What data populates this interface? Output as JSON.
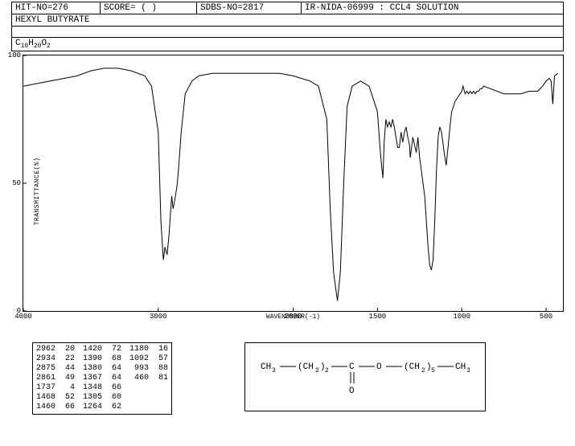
{
  "header": {
    "hit_no": "HIT-NO=276",
    "score": "SCORE=   (   )",
    "sdbs_no": "SDBS-NO=2817",
    "ir_info": "IR-NIDA-06999 : CCL4 SOLUTION"
  },
  "compound_name": "HEXYL BUTYRATE",
  "formula_parts": [
    "C",
    "10",
    "H",
    "20",
    "O",
    "2"
  ],
  "chart": {
    "type": "line",
    "y_label": "TRANSMITTANCE(%)",
    "x_label": "WAVENUMBER(-1)",
    "xlim": [
      4000,
      400
    ],
    "ylim": [
      0,
      100
    ],
    "x_ticks": [
      4000,
      3000,
      2000,
      1500,
      1000,
      500
    ],
    "y_ticks": [
      0,
      50,
      100
    ],
    "line_color": "#000000",
    "background_color": "#ffffff",
    "data": [
      [
        4000,
        88
      ],
      [
        3900,
        89
      ],
      [
        3800,
        90
      ],
      [
        3700,
        91
      ],
      [
        3600,
        92
      ],
      [
        3500,
        94
      ],
      [
        3400,
        95
      ],
      [
        3300,
        95
      ],
      [
        3200,
        94
      ],
      [
        3100,
        92
      ],
      [
        3050,
        88
      ],
      [
        3000,
        70
      ],
      [
        2980,
        35
      ],
      [
        2962,
        20
      ],
      [
        2950,
        25
      ],
      [
        2934,
        22
      ],
      [
        2920,
        30
      ],
      [
        2900,
        45
      ],
      [
        2890,
        40
      ],
      [
        2875,
        44
      ],
      [
        2861,
        49
      ],
      [
        2850,
        55
      ],
      [
        2830,
        70
      ],
      [
        2800,
        85
      ],
      [
        2750,
        90
      ],
      [
        2700,
        92
      ],
      [
        2600,
        93
      ],
      [
        2500,
        93
      ],
      [
        2400,
        93
      ],
      [
        2300,
        93
      ],
      [
        2200,
        93
      ],
      [
        2100,
        93
      ],
      [
        2000,
        92
      ],
      [
        1950,
        91
      ],
      [
        1900,
        90
      ],
      [
        1850,
        88
      ],
      [
        1800,
        75
      ],
      [
        1780,
        40
      ],
      [
        1760,
        15
      ],
      [
        1737,
        4
      ],
      [
        1720,
        15
      ],
      [
        1700,
        50
      ],
      [
        1680,
        80
      ],
      [
        1650,
        88
      ],
      [
        1600,
        90
      ],
      [
        1550,
        88
      ],
      [
        1520,
        82
      ],
      [
        1500,
        78
      ],
      [
        1480,
        60
      ],
      [
        1468,
        52
      ],
      [
        1460,
        66
      ],
      [
        1450,
        75
      ],
      [
        1440,
        72
      ],
      [
        1430,
        74
      ],
      [
        1420,
        72
      ],
      [
        1410,
        75
      ],
      [
        1400,
        72
      ],
      [
        1390,
        68
      ],
      [
        1380,
        64
      ],
      [
        1370,
        64
      ],
      [
        1360,
        70
      ],
      [
        1350,
        66
      ],
      [
        1340,
        70
      ],
      [
        1330,
        72
      ],
      [
        1320,
        68
      ],
      [
        1310,
        65
      ],
      [
        1305,
        60
      ],
      [
        1290,
        68
      ],
      [
        1280,
        65
      ],
      [
        1270,
        62
      ],
      [
        1260,
        68
      ],
      [
        1250,
        60
      ],
      [
        1240,
        55
      ],
      [
        1230,
        50
      ],
      [
        1220,
        45
      ],
      [
        1210,
        35
      ],
      [
        1200,
        25
      ],
      [
        1190,
        18
      ],
      [
        1180,
        16
      ],
      [
        1170,
        20
      ],
      [
        1160,
        35
      ],
      [
        1150,
        55
      ],
      [
        1140,
        68
      ],
      [
        1130,
        72
      ],
      [
        1120,
        70
      ],
      [
        1110,
        65
      ],
      [
        1100,
        60
      ],
      [
        1092,
        57
      ],
      [
        1080,
        65
      ],
      [
        1070,
        72
      ],
      [
        1060,
        78
      ],
      [
        1050,
        80
      ],
      [
        1040,
        82
      ],
      [
        1030,
        83
      ],
      [
        1020,
        84
      ],
      [
        1010,
        85
      ],
      [
        1000,
        86
      ],
      [
        993,
        88
      ],
      [
        980,
        85
      ],
      [
        970,
        86
      ],
      [
        960,
        85
      ],
      [
        950,
        86
      ],
      [
        940,
        85
      ],
      [
        930,
        86
      ],
      [
        920,
        85
      ],
      [
        910,
        86
      ],
      [
        900,
        86
      ],
      [
        890,
        87
      ],
      [
        880,
        87
      ],
      [
        870,
        88
      ],
      [
        750,
        85
      ],
      [
        740,
        85
      ],
      [
        700,
        85
      ],
      [
        650,
        85
      ],
      [
        600,
        86
      ],
      [
        550,
        86
      ],
      [
        520,
        88
      ],
      [
        500,
        90
      ],
      [
        480,
        91
      ],
      [
        470,
        90
      ],
      [
        460,
        81
      ],
      [
        450,
        92
      ],
      [
        430,
        93
      ]
    ]
  },
  "peak_table": {
    "columns": [
      [
        [
          2962,
          20
        ],
        [
          2934,
          22
        ],
        [
          2875,
          44
        ],
        [
          2861,
          49
        ],
        [
          1737,
          4
        ],
        [
          1468,
          52
        ],
        [
          1460,
          66
        ]
      ],
      [
        [
          1420,
          72
        ],
        [
          1390,
          68
        ],
        [
          1380,
          64
        ],
        [
          1367,
          64
        ],
        [
          1348,
          66
        ],
        [
          1305,
          60
        ],
        [
          1264,
          62
        ]
      ],
      [
        [
          1180,
          16
        ],
        [
          1092,
          57
        ],
        [
          993,
          88
        ],
        [
          460,
          81
        ]
      ]
    ]
  },
  "structure": {
    "text_color": "#000000",
    "font_size": 11
  }
}
